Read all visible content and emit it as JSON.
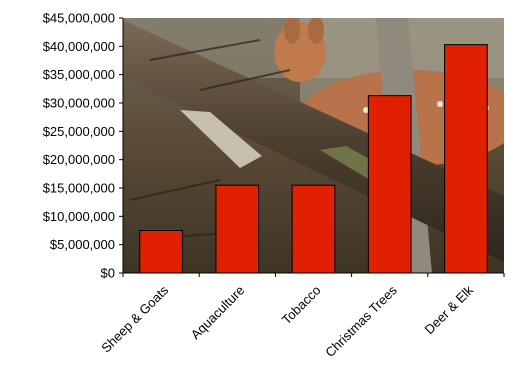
{
  "chart_data": {
    "type": "bar",
    "categories": [
      "Sheep & Goats",
      "Aquaculture",
      "Tobacco",
      "Christmas  Trees",
      "Deer & Elk"
    ],
    "values": [
      7500000,
      15500000,
      15500000,
      31300000,
      40300000
    ],
    "ylim": [
      0,
      45000000
    ],
    "yticks": [
      0,
      5000000,
      10000000,
      15000000,
      20000000,
      25000000,
      30000000,
      35000000,
      40000000,
      45000000
    ],
    "ytick_labels": [
      "$0",
      "$5,000,000",
      "$10,000,000",
      "$15,000,000",
      "$20,000,000",
      "$25,000,000",
      "$30,000,000",
      "$35,000,000",
      "$40,000,000",
      "$45,000,000"
    ],
    "bar_color": "#e02000",
    "background": "photo of a deer behind a fallen log",
    "grid": false,
    "legend": "none"
  }
}
